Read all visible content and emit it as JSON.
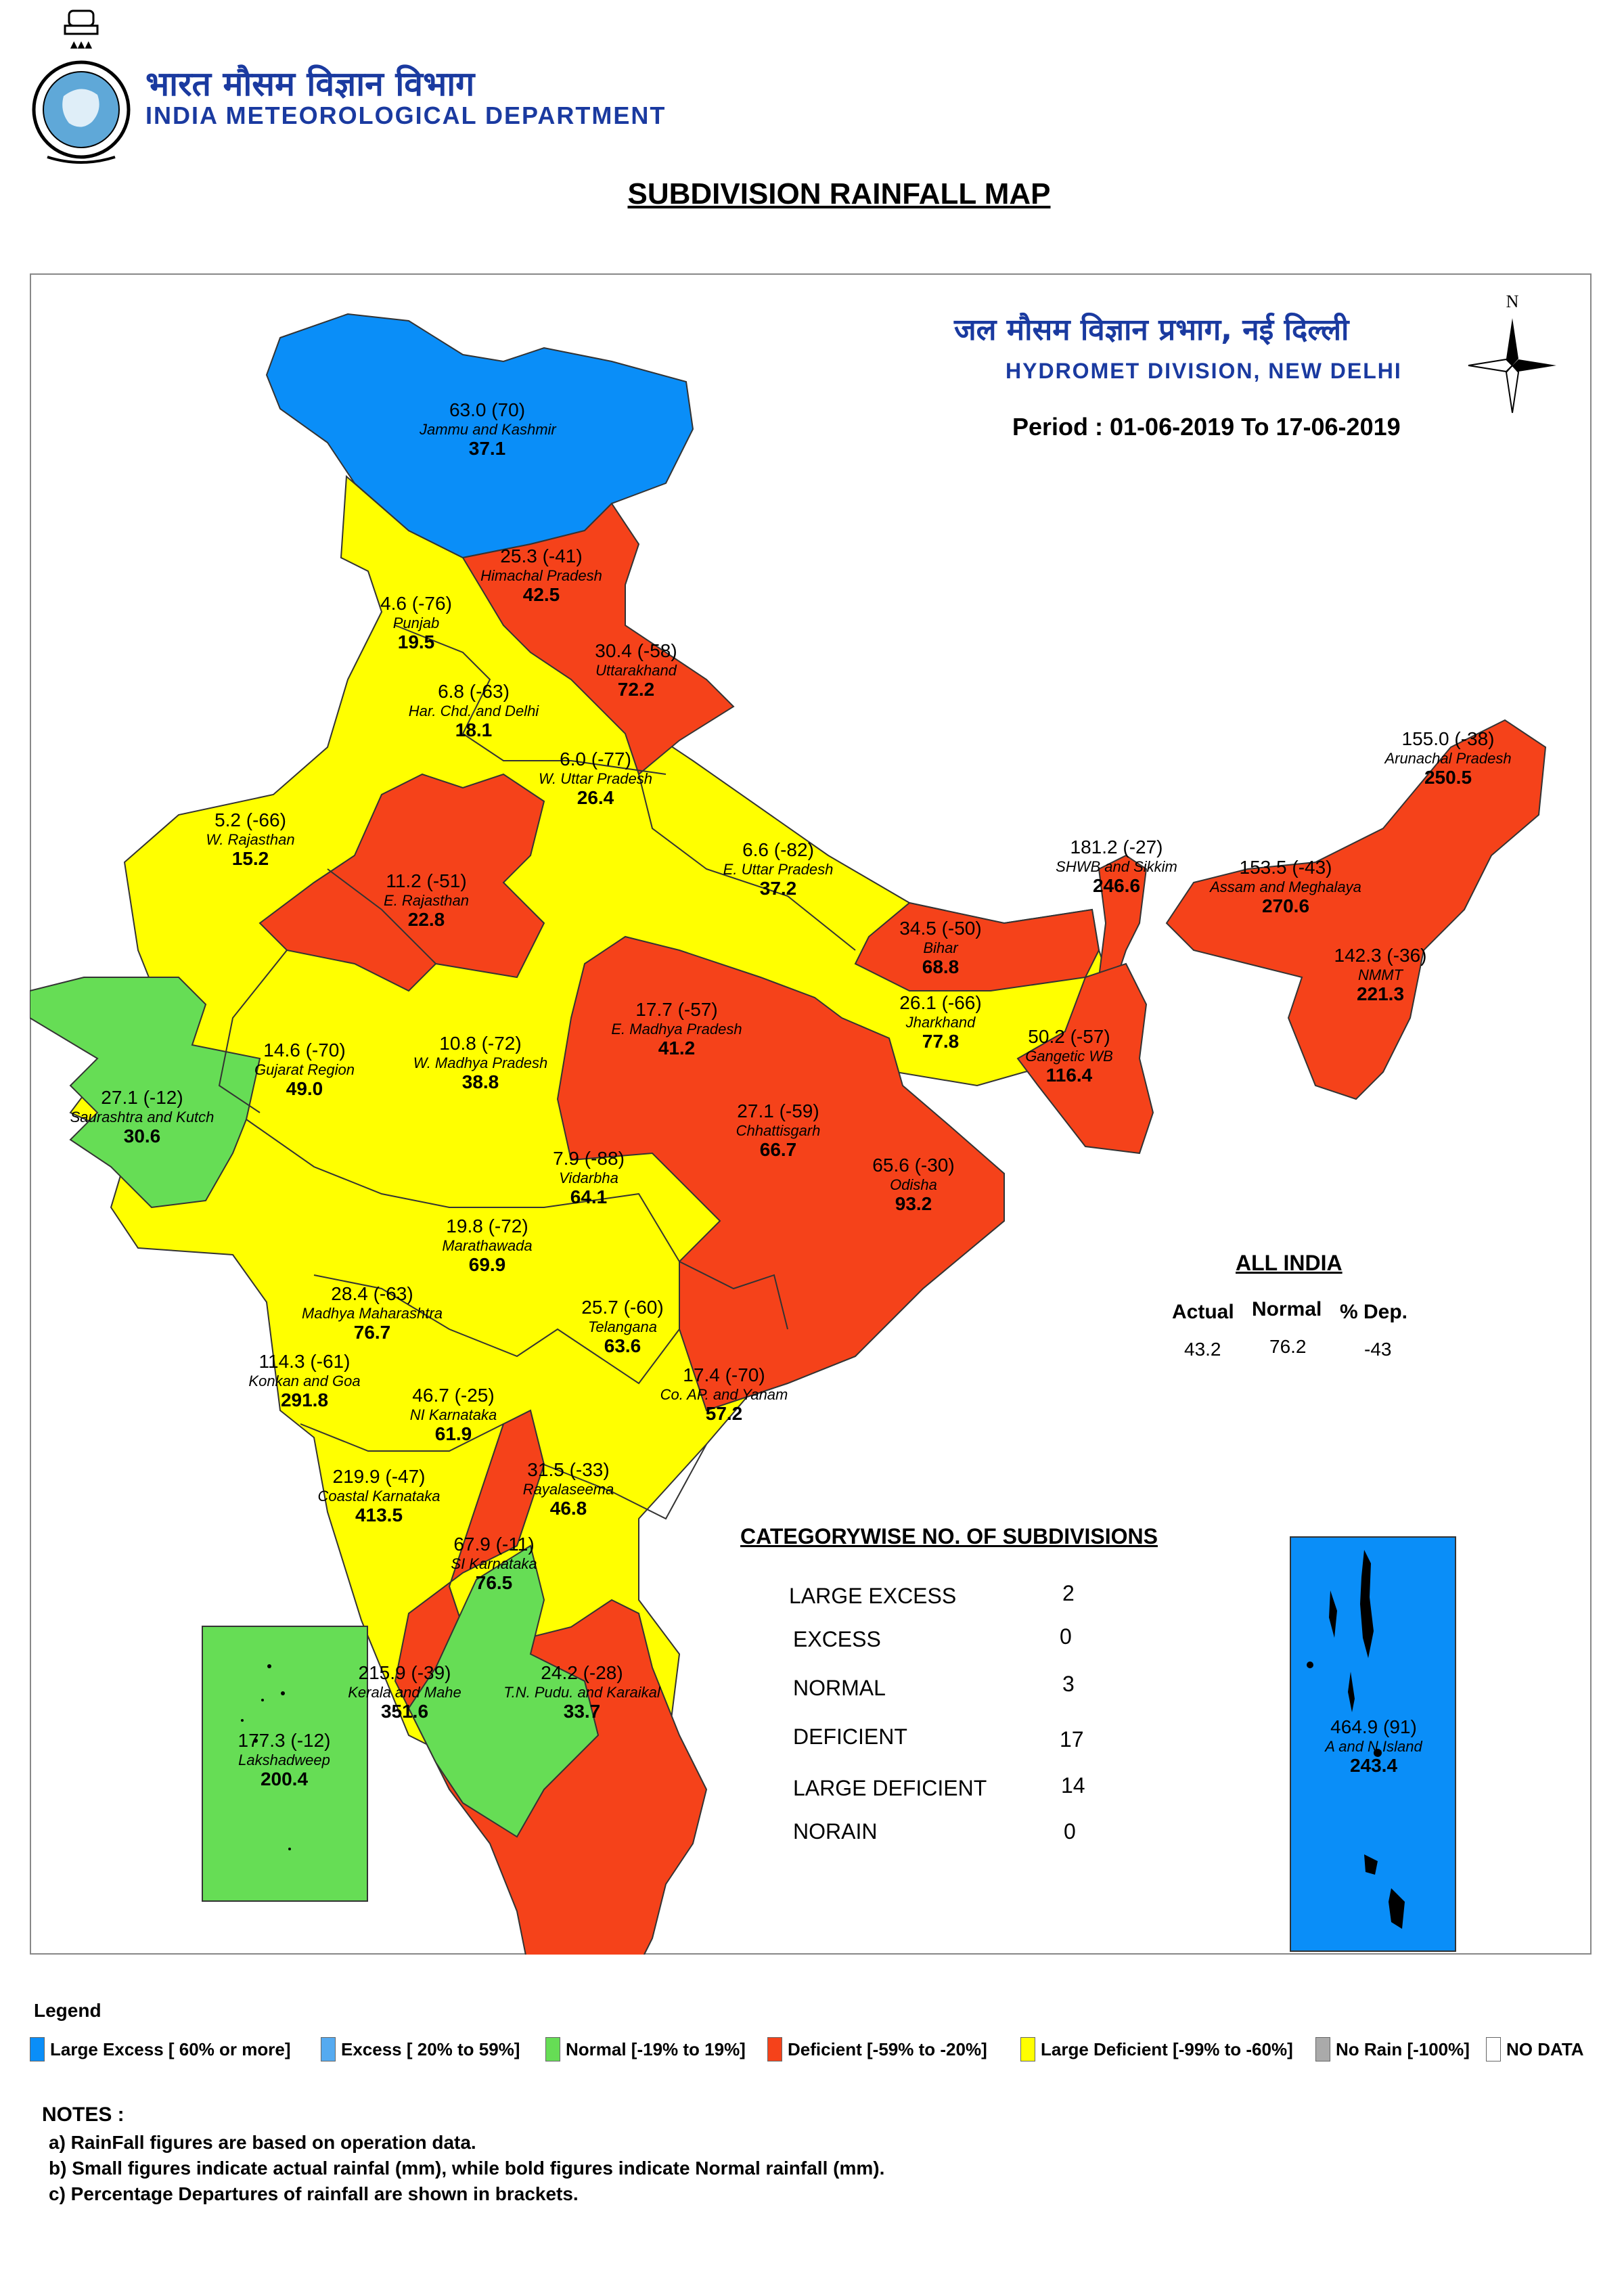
{
  "header": {
    "dept_hindi": "भारत मौसम विज्ञान विभाग",
    "dept_english": "INDIA METEOROLOGICAL DEPARTMENT",
    "map_title": "SUBDIVISION RAINFALL MAP",
    "division_hindi": "जल मौसम विज्ञान प्रभाग, नई दिल्ली",
    "division_english": "HYDROMET DIVISION, NEW DELHI",
    "period": "Period : 01-06-2019 To 17-06-2019",
    "compass_north": "N"
  },
  "category_colors": {
    "large_excess": "#0a8ef8",
    "excess": "#55aaf0",
    "normal": "#66dd55",
    "deficient": "#f5421a",
    "large_deficient": "#ffff00",
    "no_rain": "#aaaaaa",
    "no_data": "#ffffff"
  },
  "subdivisions": [
    {
      "name": "Jammu and Kashmir",
      "actual": "63.0 (70)",
      "normal": "37.1",
      "category": "large_excess"
    },
    {
      "name": "Himachal Pradesh",
      "actual": "25.3 (-41)",
      "normal": "42.5",
      "category": "deficient"
    },
    {
      "name": "Punjab",
      "actual": "4.6 (-76)",
      "normal": "19.5",
      "category": "large_deficient"
    },
    {
      "name": "Uttarakhand",
      "actual": "30.4 (-58)",
      "normal": "72.2",
      "category": "deficient"
    },
    {
      "name": "Har. Chd. and Delhi",
      "actual": "6.8 (-63)",
      "normal": "18.1",
      "category": "large_deficient"
    },
    {
      "name": "W. Uttar Pradesh",
      "actual": "6.0 (-77)",
      "normal": "26.4",
      "category": "large_deficient"
    },
    {
      "name": "W. Rajasthan",
      "actual": "5.2 (-66)",
      "normal": "15.2",
      "category": "large_deficient"
    },
    {
      "name": "E. Rajasthan",
      "actual": "11.2 (-51)",
      "normal": "22.8",
      "category": "deficient"
    },
    {
      "name": "E. Uttar Pradesh",
      "actual": "6.6 (-82)",
      "normal": "37.2",
      "category": "large_deficient"
    },
    {
      "name": "Bihar",
      "actual": "34.5 (-50)",
      "normal": "68.8",
      "category": "deficient"
    },
    {
      "name": "SHWB and Sikkim",
      "actual": "181.2 (-27)",
      "normal": "246.6",
      "category": "deficient"
    },
    {
      "name": "Arunachal Pradesh",
      "actual": "155.0 (-38)",
      "normal": "250.5",
      "category": "deficient"
    },
    {
      "name": "Assam and Meghalaya",
      "actual": "153.5 (-43)",
      "normal": "270.6",
      "category": "deficient"
    },
    {
      "name": "NMMT",
      "actual": "142.3 (-36)",
      "normal": "221.3",
      "category": "deficient"
    },
    {
      "name": "Jharkhand",
      "actual": "26.1 (-66)",
      "normal": "77.8",
      "category": "large_deficient"
    },
    {
      "name": "Gangetic WB",
      "actual": "50.2 (-57)",
      "normal": "116.4",
      "category": "deficient"
    },
    {
      "name": "E. Madhya Pradesh",
      "actual": "17.7 (-57)",
      "normal": "41.2",
      "category": "deficient"
    },
    {
      "name": "W. Madhya Pradesh",
      "actual": "10.8 (-72)",
      "normal": "38.8",
      "category": "large_deficient"
    },
    {
      "name": "Gujarat Region",
      "actual": "14.6 (-70)",
      "normal": "49.0",
      "category": "large_deficient"
    },
    {
      "name": "Saurashtra and Kutch",
      "actual": "27.1 (-12)",
      "normal": "30.6",
      "category": "normal"
    },
    {
      "name": "Chhattisgarh",
      "actual": "27.1 (-59)",
      "normal": "66.7",
      "category": "deficient"
    },
    {
      "name": "Odisha",
      "actual": "65.6 (-30)",
      "normal": "93.2",
      "category": "deficient"
    },
    {
      "name": "Vidarbha",
      "actual": "7.9 (-88)",
      "normal": "64.1",
      "category": "large_deficient"
    },
    {
      "name": "Marathawada",
      "actual": "19.8 (-72)",
      "normal": "69.9",
      "category": "large_deficient"
    },
    {
      "name": "Madhya Maharashtra",
      "actual": "28.4 (-63)",
      "normal": "76.7",
      "category": "large_deficient"
    },
    {
      "name": "Telangana",
      "actual": "25.7 (-60)",
      "normal": "63.6",
      "category": "large_deficient"
    },
    {
      "name": "Konkan and Goa",
      "actual": "114.3 (-61)",
      "normal": "291.8",
      "category": "large_deficient"
    },
    {
      "name": "NI Karnataka",
      "actual": "46.7 (-25)",
      "normal": "61.9",
      "category": "deficient"
    },
    {
      "name": "Co. AP. and Yanam",
      "actual": "17.4 (-70)",
      "normal": "57.2",
      "category": "large_deficient"
    },
    {
      "name": "Coastal Karnataka",
      "actual": "219.9 (-47)",
      "normal": "413.5",
      "category": "deficient"
    },
    {
      "name": "Rayalaseema",
      "actual": "31.5 (-33)",
      "normal": "46.8",
      "category": "deficient"
    },
    {
      "name": "SI Karnataka",
      "actual": "67.9 (-11)",
      "normal": "76.5",
      "category": "normal"
    },
    {
      "name": "Kerala and Mahe",
      "actual": "215.9 (-39)",
      "normal": "351.6",
      "category": "deficient"
    },
    {
      "name": "T.N. Pudu. and Karaikal",
      "actual": "24.2 (-28)",
      "normal": "33.7",
      "category": "deficient"
    },
    {
      "name": "Lakshadweep",
      "actual": "177.3 (-12)",
      "normal": "200.4",
      "category": "normal"
    },
    {
      "name": "A and N Island",
      "actual": "464.9 (91)",
      "normal": "243.4",
      "category": "large_excess"
    }
  ],
  "all_india": {
    "title": "ALL INDIA",
    "headers": [
      "Actual",
      "Normal",
      "% Dep."
    ],
    "values": [
      "43.2",
      "76.2",
      "-43"
    ]
  },
  "categorywise": {
    "title": "CATEGORYWISE NO. OF SUBDIVISIONS",
    "rows": [
      {
        "name": "LARGE EXCESS",
        "count": "2"
      },
      {
        "name": "EXCESS",
        "count": "0"
      },
      {
        "name": "NORMAL",
        "count": "3"
      },
      {
        "name": "DEFICIENT",
        "count": "17"
      },
      {
        "name": "LARGE DEFICIENT",
        "count": "14"
      },
      {
        "name": "NORAIN",
        "count": "0"
      }
    ]
  },
  "legend": {
    "title": "Legend",
    "items": [
      {
        "label": "Large Excess [ 60% or more]",
        "color": "#0a8ef8"
      },
      {
        "label": "Excess [ 20% to 59%]",
        "color": "#55aaf0"
      },
      {
        "label": "Normal [-19% to 19%]",
        "color": "#66dd55"
      },
      {
        "label": "Deficient [-59% to -20%]",
        "color": "#f5421a"
      },
      {
        "label": "Large Deficient [-99% to -60%]",
        "color": "#ffff00"
      },
      {
        "label": "No Rain [-100%]",
        "color": "#aaaaaa"
      },
      {
        "label": "NO DATA",
        "color": "#ffffff"
      }
    ]
  },
  "notes": {
    "title": "NOTES :",
    "items": [
      "a) RainFall figures are based on operation data.",
      "b) Small figures indicate actual rainfal (mm), while bold figures indicate Normal rainfall (mm).",
      "c) Percentage Departures of rainfall are shown in brackets."
    ]
  }
}
